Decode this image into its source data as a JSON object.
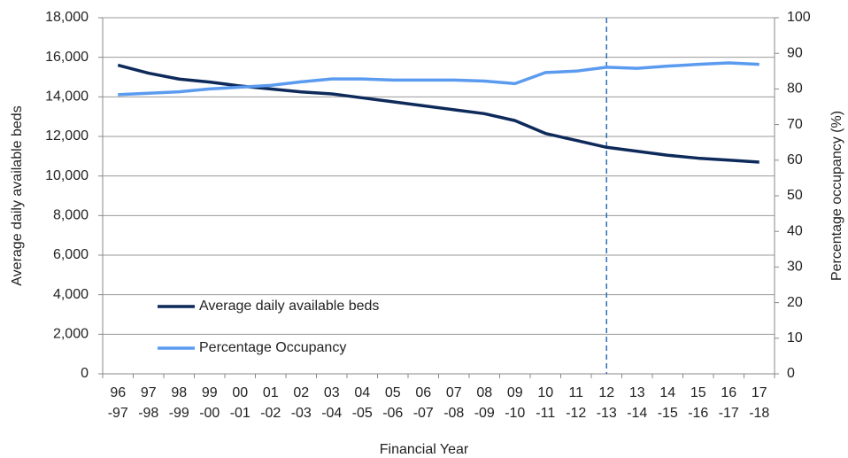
{
  "chart_data": {
    "type": "line",
    "x_label": "Financial Year",
    "y_label": "Average  daily available  beds",
    "y2_label": "Percentage  occupancy (%)",
    "categories": [
      [
        "96",
        "-97"
      ],
      [
        "97",
        "-98"
      ],
      [
        "98",
        "-99"
      ],
      [
        "99",
        "-00"
      ],
      [
        "00",
        "-01"
      ],
      [
        "01",
        "-02"
      ],
      [
        "02",
        "-03"
      ],
      [
        "03",
        "-04"
      ],
      [
        "04",
        "-05"
      ],
      [
        "05",
        "-06"
      ],
      [
        "06",
        "-07"
      ],
      [
        "07",
        "-08"
      ],
      [
        "08",
        "-09"
      ],
      [
        "09",
        "-10"
      ],
      [
        "10",
        "-11"
      ],
      [
        "11",
        "-12"
      ],
      [
        "12",
        "-13"
      ],
      [
        "13",
        "-14"
      ],
      [
        "14",
        "-15"
      ],
      [
        "15",
        "-16"
      ],
      [
        "16",
        "-17"
      ],
      [
        "17",
        "-18"
      ]
    ],
    "series": [
      {
        "name": "Average daily available beds",
        "color": "#0d2a5a",
        "values": [
          15600,
          15200,
          14900,
          14750,
          14550,
          14400,
          14250,
          14150,
          13950,
          13750,
          13550,
          13350,
          13150,
          12800,
          12150,
          11800,
          11450,
          11250,
          11050,
          10900,
          10800,
          10700
        ]
      },
      {
        "name": "Percentage Occupancy",
        "color": "#5b9bef",
        "axis": "y2",
        "values": [
          78.4,
          78.8,
          79.2,
          80.0,
          80.5,
          81.0,
          82.0,
          82.8,
          82.8,
          82.5,
          82.5,
          82.5,
          82.2,
          81.5,
          84.6,
          85.0,
          86.1,
          85.8,
          86.4,
          86.9,
          87.3,
          86.9
        ]
      }
    ],
    "ylim": [
      0,
      18000
    ],
    "yticks": [
      0,
      {
        "value": 2000,
        "label": "2,000"
      },
      {
        "value": 4000,
        "label": "4,000"
      },
      {
        "value": 6000,
        "label": "6,000"
      },
      {
        "value": 8000,
        "label": "8,000"
      },
      {
        "value": 10000,
        "label": "10,000"
      },
      {
        "value": 12000,
        "label": "12,000"
      },
      {
        "value": 14000,
        "label": "14,000"
      },
      {
        "value": 16000,
        "label": "16,000"
      },
      {
        "value": 18000,
        "label": "18,000"
      }
    ],
    "y2lim": [
      0,
      100
    ],
    "y2ticks": [
      0,
      10,
      20,
      30,
      40,
      50,
      60,
      70,
      80,
      90,
      100
    ],
    "grid": true,
    "legend": "lower-left",
    "reference_line": {
      "category_index": 16,
      "color": "#2e6db4",
      "style": "dashed"
    }
  }
}
